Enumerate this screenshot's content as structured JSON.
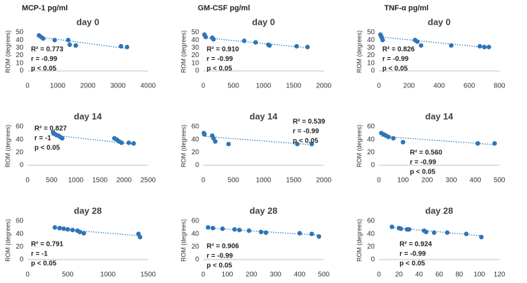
{
  "column_titles": [
    "MCP-1 pg/ml",
    "GM-CSF pg/ml",
    "TNF-α pg/ml"
  ],
  "chart_data": [
    {
      "type": "scatter",
      "title": "day 0",
      "ylabel": "ROM (degrees)",
      "color": "#2e75b6",
      "x": [
        380,
        450,
        520,
        900,
        1350,
        1400,
        1600,
        3100,
        3300
      ],
      "y": [
        46,
        44,
        42,
        40,
        40,
        34,
        33,
        32,
        31
      ],
      "xlim": [
        0,
        4000
      ],
      "xticks": [
        0,
        1000,
        2000,
        3000,
        4000
      ],
      "ylim": [
        0,
        50
      ],
      "yticks": [
        0,
        10,
        20,
        30,
        40,
        50
      ],
      "trendline": {
        "x": [
          380,
          3300
        ],
        "y": [
          44,
          29
        ]
      },
      "annotations": [
        "R² = 0.773",
        "r = -0.99",
        "p < 0.05"
      ]
    },
    {
      "type": "scatter",
      "title": "day 0",
      "ylabel": "ROM (degrees)",
      "color": "#2e75b6",
      "x": [
        20,
        40,
        150,
        170,
        680,
        870,
        1080,
        1100,
        1550,
        1730
      ],
      "y": [
        47,
        44,
        43,
        41,
        39,
        37,
        34,
        33,
        32,
        31
      ],
      "xlim": [
        0,
        2000
      ],
      "xticks": [
        0,
        500,
        1000,
        1500,
        2000
      ],
      "ylim": [
        0,
        50
      ],
      "yticks": [
        0,
        10,
        20,
        30,
        40,
        50
      ],
      "trendline": {
        "x": [
          20,
          1730
        ],
        "y": [
          43,
          30
        ]
      },
      "annotations": [
        "R² = 0.910",
        "r = -0.99",
        "p < 0.05"
      ]
    },
    {
      "type": "scatter",
      "title": "day 0",
      "ylabel": "ROM (degrees)",
      "color": "#2e75b6",
      "x": [
        10,
        15,
        20,
        25,
        240,
        255,
        280,
        480,
        670,
        700,
        730
      ],
      "y": [
        47,
        45,
        43,
        40,
        40,
        38,
        33,
        33,
        32,
        31,
        31
      ],
      "xlim": [
        0,
        800
      ],
      "xticks": [
        0,
        200,
        400,
        600,
        800
      ],
      "ylim": [
        0,
        50
      ],
      "yticks": [
        0,
        10,
        20,
        30,
        40,
        50
      ],
      "trendline": {
        "x": [
          10,
          730
        ],
        "y": [
          44,
          30
        ]
      },
      "annotations": [
        "R² = 0.826",
        "r = -0.99",
        "p < 0.05"
      ]
    },
    {
      "type": "scatter",
      "title": "day 14",
      "ylabel": "ROM (degrees)",
      "color": "#2e75b6",
      "x": [
        530,
        560,
        600,
        640,
        680,
        720,
        1800,
        1850,
        1900,
        1950,
        2100,
        2200
      ],
      "y": [
        51,
        49,
        47,
        46,
        44,
        42,
        42,
        40,
        37,
        35,
        35,
        34
      ],
      "xlim": [
        0,
        2500
      ],
      "xticks": [
        0,
        500,
        1000,
        1500,
        2000,
        2500
      ],
      "ylim": [
        0,
        60
      ],
      "yticks": [
        0,
        20,
        40,
        60
      ],
      "trendline": {
        "x": [
          500,
          2200
        ],
        "y": [
          47,
          33
        ]
      },
      "annotations": [
        "R² = 0.827",
        "r = -1",
        "p < 0.05"
      ]
    },
    {
      "type": "scatter",
      "title": "day 14",
      "ylabel": "ROM (degrees)",
      "color": "#2e75b6",
      "x": [
        10,
        20,
        150,
        170,
        200,
        420,
        1560,
        1800
      ],
      "y": [
        50,
        48,
        46,
        42,
        37,
        33,
        33,
        33
      ],
      "xlim": [
        0,
        2000
      ],
      "xticks": [
        0,
        500,
        1000,
        1500,
        2000
      ],
      "ylim": [
        0,
        60
      ],
      "yticks": [
        0,
        20,
        40,
        60
      ],
      "trendline": {
        "x": [
          10,
          1800
        ],
        "y": [
          45,
          32
        ]
      },
      "annotations": [
        "R² = 0.539",
        "r = -0.99",
        "p < 0.05"
      ]
    },
    {
      "type": "scatter",
      "title": "day 14",
      "ylabel": "ROM (degrees)",
      "color": "#2e75b6",
      "x": [
        10,
        20,
        30,
        40,
        60,
        100,
        410,
        480
      ],
      "y": [
        50,
        48,
        46,
        44,
        42,
        36,
        34,
        34
      ],
      "xlim": [
        0,
        500
      ],
      "xticks": [
        0,
        100,
        200,
        300,
        400,
        500
      ],
      "ylim": [
        0,
        60
      ],
      "yticks": [
        0,
        20,
        40,
        60
      ],
      "trendline": {
        "x": [
          10,
          480
        ],
        "y": [
          45,
          32
        ]
      },
      "annotations": [
        "R² = 0.560",
        "r = -0.99",
        "p < 0.05"
      ]
    },
    {
      "type": "scatter",
      "title": "day 28",
      "ylabel": "ROM (degrees)",
      "color": "#2e75b6",
      "x": [
        340,
        400,
        450,
        500,
        560,
        620,
        650,
        700,
        1380,
        1400
      ],
      "y": [
        50,
        49,
        48,
        47,
        46,
        45,
        43,
        41,
        40,
        35
      ],
      "xlim": [
        0,
        1500
      ],
      "xticks": [
        0,
        500,
        1000,
        1500
      ],
      "ylim": [
        0,
        60
      ],
      "yticks": [
        0,
        20,
        40,
        60
      ],
      "trendline": {
        "x": [
          340,
          1400
        ],
        "y": [
          48,
          37
        ]
      },
      "annotations": [
        "R² = 0.791",
        "r = -1",
        "p < 0.05"
      ]
    },
    {
      "type": "scatter",
      "title": "day 28",
      "ylabel": "ROM (degrees)",
      "color": "#2e75b6",
      "x": [
        20,
        40,
        80,
        130,
        150,
        190,
        240,
        260,
        400,
        450,
        480
      ],
      "y": [
        50,
        49,
        48,
        47,
        46,
        45,
        43,
        42,
        41,
        40,
        36
      ],
      "xlim": [
        0,
        500
      ],
      "xticks": [
        0,
        100,
        200,
        300,
        400,
        500
      ],
      "ylim": [
        0,
        60
      ],
      "yticks": [
        0,
        20,
        40,
        60
      ],
      "trendline": {
        "x": [
          20,
          480
        ],
        "y": [
          49,
          38
        ]
      },
      "annotations": [
        "R² = 0.906",
        "r = -0.99",
        "p < 0.05"
      ]
    },
    {
      "type": "scatter",
      "title": "day 28",
      "ylabel": "ROM (degrees)",
      "color": "#2e75b6",
      "x": [
        13,
        20,
        22,
        28,
        30,
        45,
        47,
        55,
        68,
        87,
        102
      ],
      "y": [
        51,
        49,
        48,
        47,
        47,
        45,
        43,
        42,
        42,
        40,
        35
      ],
      "xlim": [
        0,
        120
      ],
      "xticks": [
        0,
        20,
        40,
        60,
        80,
        100,
        120
      ],
      "ylim": [
        0,
        60
      ],
      "yticks": [
        0,
        20,
        40,
        60
      ],
      "trendline": {
        "x": [
          13,
          102
        ],
        "y": [
          50,
          37
        ]
      },
      "annotations": [
        "R² = 0.924",
        "r = -0.99",
        "p < 0.05"
      ]
    }
  ]
}
